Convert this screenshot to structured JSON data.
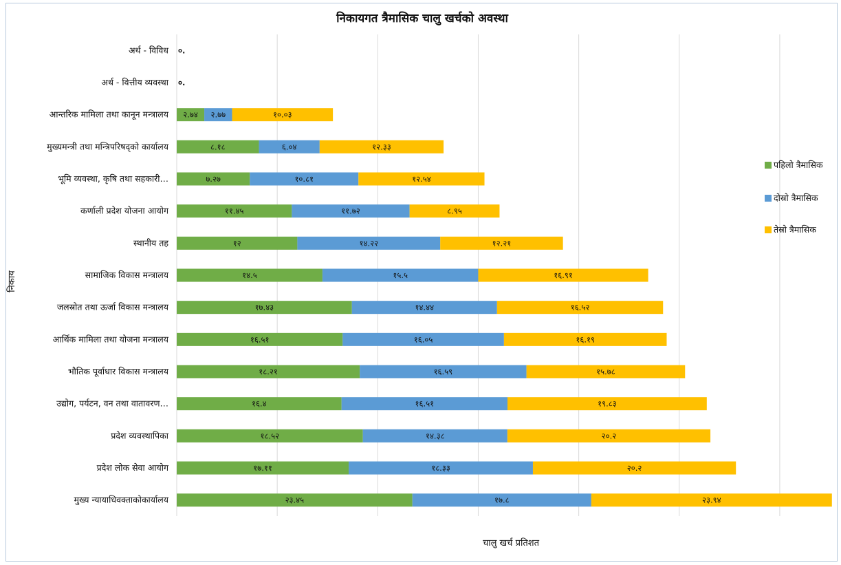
{
  "chart_data": {
    "type": "bar",
    "orientation": "horizontal",
    "stacked": true,
    "title": "निकायगत त्रैमासिक चालु खर्चको अवस्था",
    "xlabel": "चालु खर्च प्रतिशत",
    "ylabel": "निकाय",
    "xlim": [
      0,
      65
    ],
    "grid": true,
    "legend_position": "right",
    "categories": [
      "अर्थ - विविध",
      "अर्थ - वित्तीय व्यवस्था",
      "आन्तरिक मामिला तथा कानून मन्त्रालय",
      "मुख्यमन्त्री तथा मन्त्रिपरिषद्को कार्यालय",
      "भूमि व्यवस्था, कृषि तथा सहकारी…",
      "कर्णाली प्रदेश योजना आयोग",
      "स्थानीय तह",
      "सामाजिक विकास मन्त्रालय",
      "जलस्रोत तथा ऊर्जा विकास मन्त्रालय",
      "आर्थिक मामिला तथा योजना मन्त्रालय",
      "भौतिक पूर्वाधार विकास मन्त्रालय",
      "उद्योग, पर्यटन, वन तथा वातावरण…",
      "प्रदेश व्यवस्थापिका",
      "प्रदेश लोक सेवा आयोग",
      "मुख्य न्यायाधिवक्ताकोकार्यालय"
    ],
    "series": [
      {
        "name": "पहिलो त्रैमासिक",
        "color": "#70ad47",
        "values": [
          0,
          0,
          2.74,
          8.18,
          7.27,
          11.45,
          12,
          14.5,
          17.43,
          16.51,
          18.21,
          16.4,
          18.52,
          17.11,
          23.45
        ],
        "labels": [
          "",
          "",
          "२.७४",
          "८.१८",
          "७.२७",
          "११.४५",
          "१२",
          "१४.५",
          "१७.४३",
          "१६.५१",
          "१८.२१",
          "१६.४",
          "१८.५२",
          "१७.११",
          "२३.४५"
        ]
      },
      {
        "name": "दोस्रो त्रैमासिक",
        "color": "#5b9bd5",
        "values": [
          0,
          0,
          2.77,
          6.04,
          10.81,
          11.72,
          14.22,
          15.5,
          14.44,
          16.05,
          16.59,
          16.51,
          14.38,
          18.33,
          17.8
        ],
        "labels": [
          "",
          "",
          "२.७७",
          "६.०४",
          "१०.८१",
          "११.७२",
          "१४.२२",
          "१५.५",
          "१४.४४",
          "१६.०५",
          "१६.५९",
          "१६.५१",
          "१४.३८",
          "१८.३३",
          "१७.८"
        ]
      },
      {
        "name": "तेस्रो त्रैमासिक",
        "color": "#ffc000",
        "values": [
          0,
          0,
          10.03,
          12.33,
          12.54,
          8.95,
          12.21,
          16.91,
          16.52,
          16.19,
          15.78,
          19.83,
          20.2,
          20.2,
          23.94
        ],
        "labels": [
          "",
          "",
          "१०.०३",
          "१२.३३",
          "१२.५४",
          "८.९५",
          "१२.२१",
          "१६.९१",
          "१६.५२",
          "१६.१९",
          "१५.७८",
          "१९.८३",
          "२०.२",
          "२०.२",
          "२३.९४"
        ]
      }
    ],
    "zero_labels": [
      "०.",
      "०."
    ]
  }
}
